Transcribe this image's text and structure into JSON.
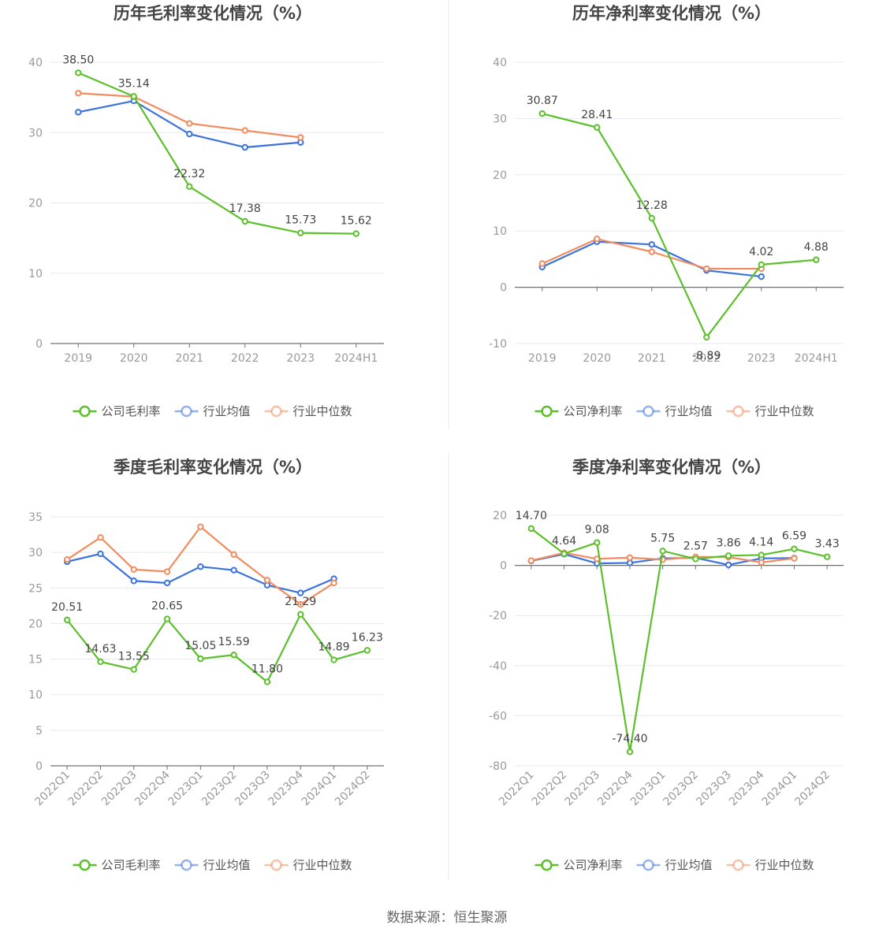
{
  "source_text": "数据来源：恒生聚源",
  "colors": {
    "company": "#5bc02b",
    "avg": "#3c72dc",
    "median": "#f28c5e",
    "grid": "#e6e8ef",
    "axis": "#6e7079"
  },
  "chart_data": [
    {
      "type": "line",
      "title": "历年毛利率变化情况（%）",
      "categories": [
        "2019",
        "2020",
        "2021",
        "2022",
        "2023",
        "2024H1"
      ],
      "ylim": [
        0,
        40
      ],
      "yticks": [
        0,
        10,
        20,
        30,
        40
      ],
      "rotate_labels": false,
      "grid": true,
      "legend_position": "bottom",
      "series": [
        {
          "name": "公司毛利率",
          "color": "#5bc02b",
          "values": [
            38.5,
            35.14,
            22.32,
            17.38,
            15.73,
            15.62
          ],
          "labels": [
            "38.50",
            "35.14",
            "22.32",
            "17.38",
            "15.73",
            "15.62"
          ]
        },
        {
          "name": "行业均值",
          "color": "#3c72dc",
          "values": [
            32.9,
            34.5,
            29.8,
            27.9,
            28.6,
            null
          ]
        },
        {
          "name": "行业中位数",
          "color": "#f28c5e",
          "values": [
            35.6,
            35.1,
            31.3,
            30.3,
            29.3,
            null
          ]
        }
      ]
    },
    {
      "type": "line",
      "title": "历年净利率变化情况（%）",
      "categories": [
        "2019",
        "2020",
        "2021",
        "2022",
        "2023",
        "2024H1"
      ],
      "ylim": [
        -10,
        40
      ],
      "yticks": [
        -10,
        0,
        10,
        20,
        30,
        40
      ],
      "rotate_labels": false,
      "grid": true,
      "legend_position": "bottom",
      "series": [
        {
          "name": "公司净利率",
          "color": "#5bc02b",
          "values": [
            30.87,
            28.41,
            12.28,
            -8.89,
            4.02,
            4.88
          ],
          "labels": [
            "30.87",
            "28.41",
            "12.28",
            "-8.89",
            "4.02",
            "4.88"
          ]
        },
        {
          "name": "行业均值",
          "color": "#3c72dc",
          "values": [
            3.6,
            8.1,
            7.6,
            3.0,
            1.9,
            null
          ]
        },
        {
          "name": "行业中位数",
          "color": "#f28c5e",
          "values": [
            4.2,
            8.6,
            6.3,
            3.3,
            3.3,
            null
          ]
        }
      ]
    },
    {
      "type": "line",
      "title": "季度毛利率变化情况（%）",
      "categories": [
        "2022Q1",
        "2022Q2",
        "2022Q3",
        "2022Q4",
        "2023Q1",
        "2023Q2",
        "2023Q3",
        "2023Q4",
        "2024Q1",
        "2024Q2"
      ],
      "ylim": [
        0,
        35
      ],
      "yticks": [
        0,
        5,
        10,
        15,
        20,
        25,
        30,
        35
      ],
      "rotate_labels": true,
      "grid": true,
      "legend_position": "bottom",
      "series": [
        {
          "name": "公司毛利率",
          "color": "#5bc02b",
          "values": [
            20.51,
            14.63,
            13.55,
            20.65,
            15.05,
            15.59,
            11.8,
            21.29,
            14.89,
            16.23
          ],
          "labels": [
            "20.51",
            "14.63",
            "13.55",
            "20.65",
            "15.05",
            "15.59",
            "11.80",
            "21.29",
            "14.89",
            "16.23"
          ]
        },
        {
          "name": "行业均值",
          "color": "#3c72dc",
          "values": [
            28.7,
            29.8,
            26.0,
            25.7,
            28.0,
            27.5,
            25.4,
            24.3,
            26.3,
            null
          ]
        },
        {
          "name": "行业中位数",
          "color": "#f28c5e",
          "values": [
            29.0,
            32.1,
            27.6,
            27.3,
            33.6,
            29.7,
            26.1,
            22.7,
            25.7,
            null
          ]
        }
      ]
    },
    {
      "type": "line",
      "title": "季度净利率变化情况（%）",
      "categories": [
        "2022Q1",
        "2022Q2",
        "2022Q3",
        "2022Q4",
        "2023Q1",
        "2023Q2",
        "2023Q3",
        "2023Q4",
        "2024Q1",
        "2024Q2"
      ],
      "ylim": [
        -80,
        20
      ],
      "yticks": [
        -80,
        -60,
        -40,
        -20,
        0,
        20
      ],
      "rotate_labels": true,
      "grid": true,
      "legend_position": "bottom",
      "series": [
        {
          "name": "公司净利率",
          "color": "#5bc02b",
          "values": [
            14.7,
            4.64,
            9.08,
            -74.4,
            5.75,
            2.57,
            3.86,
            4.14,
            6.59,
            3.43
          ],
          "labels": [
            "14.70",
            "4.64",
            "9.08",
            "-74.40",
            "5.75",
            "2.57",
            "3.86",
            "4.14",
            "6.59",
            "3.43"
          ]
        },
        {
          "name": "行业均值",
          "color": "#3c72dc",
          "values": [
            1.8,
            4.5,
            0.8,
            1.0,
            2.8,
            3.0,
            0.2,
            2.8,
            2.9,
            null
          ]
        },
        {
          "name": "行业中位数",
          "color": "#f28c5e",
          "values": [
            1.9,
            5.0,
            2.6,
            3.1,
            2.3,
            3.4,
            3.3,
            1.2,
            2.8,
            null
          ]
        }
      ]
    }
  ]
}
